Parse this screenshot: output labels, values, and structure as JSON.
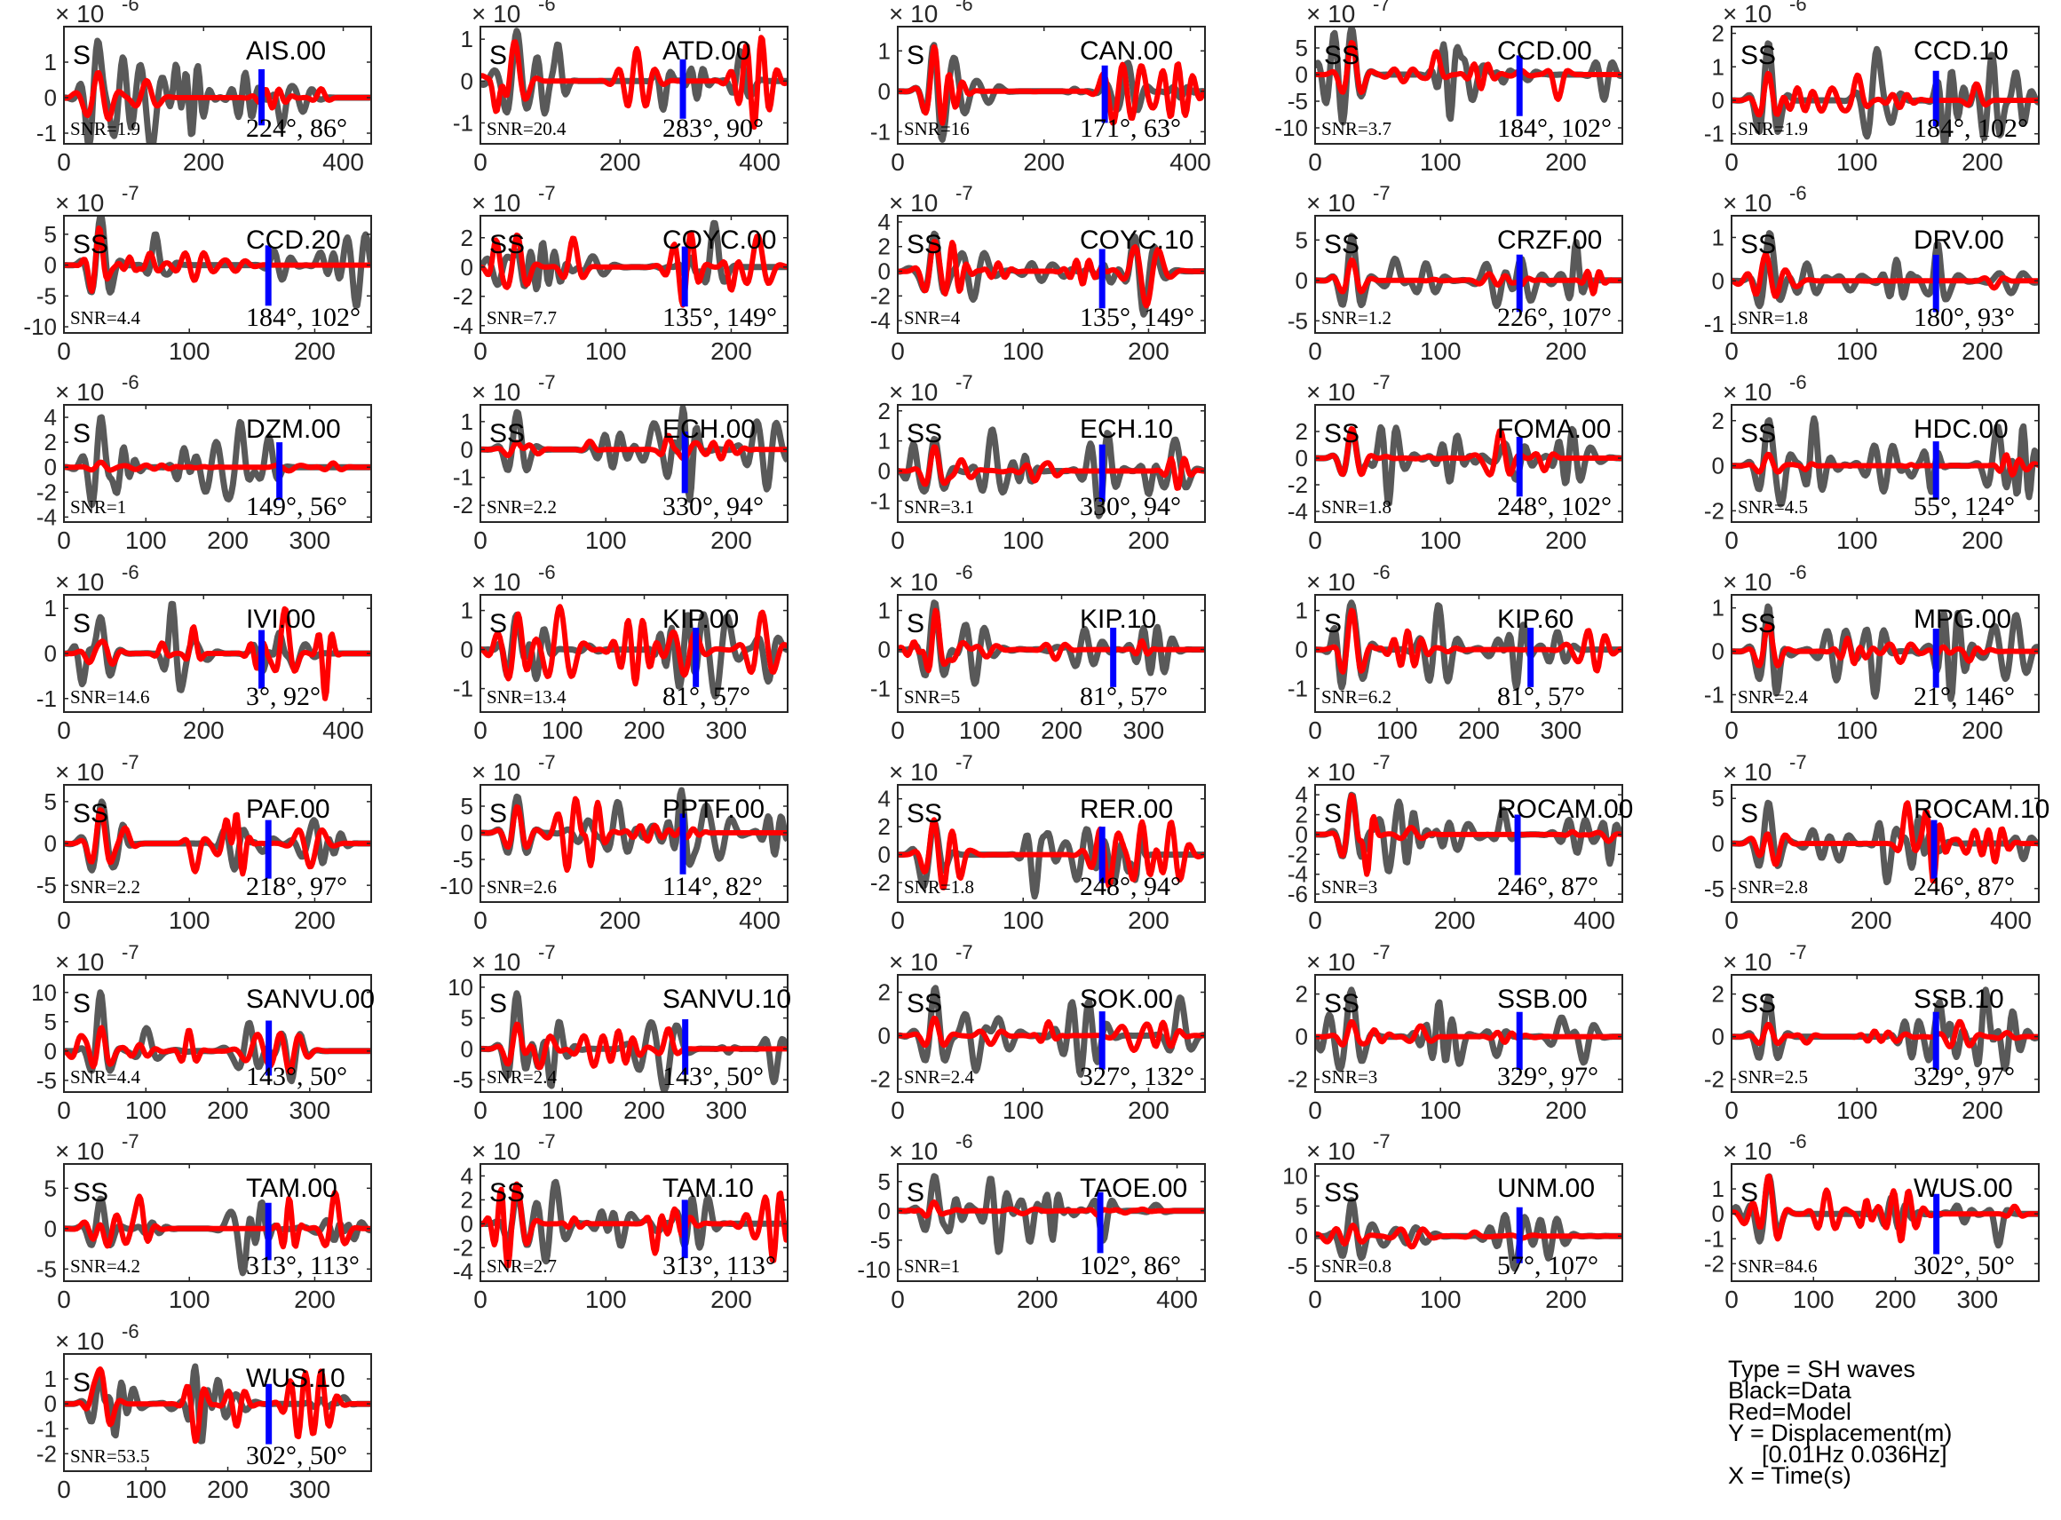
{
  "legend": {
    "type_line": "Type = SH waves",
    "black_line": "Black=Data",
    "red_line": "Red=Model",
    "y_line": "Y = Displacement(m)",
    "band_line": "[0.01Hz 0.036Hz]",
    "x_line": "X = Time(s)"
  },
  "colors": {
    "data": "#595959",
    "model": "#ff0000",
    "pick": "#0000ff",
    "axis": "#262626"
  },
  "chart_data": [
    {
      "type": "line",
      "station": "AIS.00",
      "phase": "S",
      "snr": "SNR=1.9",
      "azimuth": "224°, 86°",
      "exponent": "-6",
      "xlim": [
        0,
        440
      ],
      "xticks": [
        0,
        200,
        400
      ],
      "ylim": [
        -1.3,
        2.0
      ],
      "yticks": [
        -1,
        0,
        1
      ],
      "pick": 283,
      "seed": 1,
      "data_amp": 1.6,
      "model_amp": 0.7
    },
    {
      "type": "line",
      "station": "ATD.00",
      "phase": "S",
      "snr": "SNR=20.4",
      "azimuth": "283°, 90°",
      "exponent": "-6",
      "xlim": [
        0,
        440
      ],
      "xticks": [
        0,
        200,
        400
      ],
      "ylim": [
        -1.5,
        1.3
      ],
      "yticks": [
        -1,
        0,
        1
      ],
      "pick": 290,
      "seed": 2,
      "data_amp": 1.2,
      "model_amp": 1.1
    },
    {
      "type": "line",
      "station": "CAN.00",
      "phase": "S",
      "snr": "SNR=16",
      "azimuth": "171°, 63°",
      "exponent": "-6",
      "xlim": [
        0,
        420
      ],
      "xticks": [
        0,
        200,
        400
      ],
      "ylim": [
        -1.3,
        1.6
      ],
      "yticks": [
        -1,
        0,
        1
      ],
      "pick": 283,
      "seed": 3,
      "data_amp": 1.2,
      "model_amp": 1.1
    },
    {
      "type": "line",
      "station": "CCD.00",
      "phase": "SS",
      "snr": "SNR=3.7",
      "azimuth": "184°, 102°",
      "exponent": "-7",
      "xlim": [
        0,
        245
      ],
      "xticks": [
        0,
        100,
        200
      ],
      "ylim": [
        -13,
        9
      ],
      "yticks": [
        -10,
        -5,
        0,
        5
      ],
      "pick": 163,
      "seed": 4,
      "data_amp": 9,
      "model_amp": 6
    },
    {
      "type": "line",
      "station": "CCD.10",
      "phase": "SS",
      "snr": "SNR=1.9",
      "azimuth": "184°, 102°",
      "exponent": "-6",
      "xlim": [
        0,
        245
      ],
      "xticks": [
        0,
        100,
        200
      ],
      "ylim": [
        -1.3,
        2.2
      ],
      "yticks": [
        -1,
        0,
        1,
        2
      ],
      "pick": 163,
      "seed": 5,
      "data_amp": 1.7,
      "model_amp": 0.8
    },
    {
      "type": "line",
      "station": "CCD.20",
      "phase": "SS",
      "snr": "SNR=4.4",
      "azimuth": "184°, 102°",
      "exponent": "-7",
      "xlim": [
        0,
        245
      ],
      "xticks": [
        0,
        100,
        200
      ],
      "ylim": [
        -11,
        8
      ],
      "yticks": [
        -10,
        -5,
        0,
        5
      ],
      "pick": 163,
      "seed": 6,
      "data_amp": 8,
      "model_amp": 6
    },
    {
      "type": "line",
      "station": "COYC.00",
      "phase": "SS",
      "snr": "SNR=7.7",
      "azimuth": "135°, 149°",
      "exponent": "-7",
      "xlim": [
        0,
        245
      ],
      "xticks": [
        0,
        100,
        200
      ],
      "ylim": [
        -4.5,
        3.5
      ],
      "yticks": [
        -4,
        -2,
        0,
        2
      ],
      "pick": 163,
      "seed": 7,
      "data_amp": 3,
      "model_amp": 2.6
    },
    {
      "type": "line",
      "station": "COYC.10",
      "phase": "SS",
      "snr": "SNR=4",
      "azimuth": "135°, 149°",
      "exponent": "-7",
      "xlim": [
        0,
        245
      ],
      "xticks": [
        0,
        100,
        200
      ],
      "ylim": [
        -5,
        4.5
      ],
      "yticks": [
        -4,
        -2,
        0,
        2,
        4
      ],
      "pick": 163,
      "seed": 8,
      "data_amp": 3.5,
      "model_amp": 2.8
    },
    {
      "type": "line",
      "station": "CRZF.00",
      "phase": "SS",
      "snr": "SNR=1.2",
      "azimuth": "226°, 107°",
      "exponent": "-7",
      "xlim": [
        0,
        245
      ],
      "xticks": [
        0,
        100,
        200
      ],
      "ylim": [
        -6.5,
        8
      ],
      "yticks": [
        -5,
        0,
        5
      ],
      "pick": 163,
      "seed": 9,
      "data_amp": 5.5,
      "model_amp": 2.5
    },
    {
      "type": "line",
      "station": "DRV.00",
      "phase": "SS",
      "snr": "SNR=1.8",
      "azimuth": "180°, 93°",
      "exponent": "-6",
      "xlim": [
        0,
        245
      ],
      "xticks": [
        0,
        100,
        200
      ],
      "ylim": [
        -1.2,
        1.5
      ],
      "yticks": [
        -1,
        0,
        1
      ],
      "pick": 163,
      "seed": 10,
      "data_amp": 1.1,
      "model_amp": 0.6
    },
    {
      "type": "line",
      "station": "DZM.00",
      "phase": "S",
      "snr": "SNR=1",
      "azimuth": "149°, 56°",
      "exponent": "-6",
      "xlim": [
        0,
        375
      ],
      "xticks": [
        0,
        100,
        200,
        300
      ],
      "ylim": [
        -4.4,
        5
      ],
      "yticks": [
        -4,
        -2,
        0,
        2,
        4
      ],
      "pick": 263,
      "seed": 11,
      "data_amp": 4,
      "model_amp": 0.4
    },
    {
      "type": "line",
      "station": "ECH.00",
      "phase": "SS",
      "snr": "SNR=2.2",
      "azimuth": "330°, 94°",
      "exponent": "-7",
      "xlim": [
        0,
        245
      ],
      "xticks": [
        0,
        100,
        200
      ],
      "ylim": [
        -2.6,
        1.6
      ],
      "yticks": [
        -2,
        -1,
        0,
        1
      ],
      "pick": 163,
      "seed": 12,
      "data_amp": 1.8,
      "model_amp": 0.5
    },
    {
      "type": "line",
      "station": "ECH.10",
      "phase": "SS",
      "snr": "SNR=3.1",
      "azimuth": "330°, 94°",
      "exponent": "-7",
      "xlim": [
        0,
        245
      ],
      "xticks": [
        0,
        100,
        200
      ],
      "ylim": [
        -1.7,
        2.2
      ],
      "yticks": [
        -1,
        0,
        1,
        2
      ],
      "pick": 163,
      "seed": 13,
      "data_amp": 1.5,
      "model_amp": 0.8
    },
    {
      "type": "line",
      "station": "FOMA.00",
      "phase": "SS",
      "snr": "SNR=1.8",
      "azimuth": "248°, 102°",
      "exponent": "-7",
      "xlim": [
        0,
        245
      ],
      "xticks": [
        0,
        100,
        200
      ],
      "ylim": [
        -4.8,
        4
      ],
      "yticks": [
        -4,
        -2,
        0,
        2
      ],
      "pick": 163,
      "seed": 14,
      "data_amp": 3.4,
      "model_amp": 2.2
    },
    {
      "type": "line",
      "station": "HDC.00",
      "phase": "SS",
      "snr": "SNR=4.5",
      "azimuth": "55°, 124°",
      "exponent": "-6",
      "xlim": [
        0,
        245
      ],
      "xticks": [
        0,
        100,
        200
      ],
      "ylim": [
        -2.5,
        2.7
      ],
      "yticks": [
        -2,
        0,
        2
      ],
      "pick": 163,
      "seed": 15,
      "data_amp": 2.1,
      "model_amp": 0.5
    },
    {
      "type": "line",
      "station": "IVI.00",
      "phase": "S",
      "snr": "SNR=14.6",
      "azimuth": "3°, 92°",
      "exponent": "-6",
      "xlim": [
        0,
        440
      ],
      "xticks": [
        0,
        200,
        400
      ],
      "ylim": [
        -1.3,
        1.3
      ],
      "yticks": [
        -1,
        0,
        1
      ],
      "pick": 283,
      "seed": 16,
      "data_amp": 1.1,
      "model_amp": 1.0
    },
    {
      "type": "line",
      "station": "KIP.00",
      "phase": "S",
      "snr": "SNR=13.4",
      "azimuth": "81°, 57°",
      "exponent": "-6",
      "xlim": [
        0,
        375
      ],
      "xticks": [
        0,
        100,
        200,
        300
      ],
      "ylim": [
        -1.6,
        1.4
      ],
      "yticks": [
        -1,
        0,
        1
      ],
      "pick": 263,
      "seed": 17,
      "data_amp": 1.2,
      "model_amp": 1.1
    },
    {
      "type": "line",
      "station": "KIP.10",
      "phase": "S",
      "snr": "SNR=5",
      "azimuth": "81°, 57°",
      "exponent": "-6",
      "xlim": [
        0,
        375
      ],
      "xticks": [
        0,
        100,
        200,
        300
      ],
      "ylim": [
        -1.6,
        1.4
      ],
      "yticks": [
        -1,
        0,
        1
      ],
      "pick": 263,
      "seed": 18,
      "data_amp": 1.2,
      "model_amp": 1.0
    },
    {
      "type": "line",
      "station": "KIP.60",
      "phase": "S",
      "snr": "SNR=6.2",
      "azimuth": "81°, 57°",
      "exponent": "-6",
      "xlim": [
        0,
        375
      ],
      "xticks": [
        0,
        100,
        200,
        300
      ],
      "ylim": [
        -1.6,
        1.4
      ],
      "yticks": [
        -1,
        0,
        1
      ],
      "pick": 263,
      "seed": 19,
      "data_amp": 1.2,
      "model_amp": 1.0
    },
    {
      "type": "line",
      "station": "MPG.00",
      "phase": "SS",
      "snr": "SNR=2.4",
      "azimuth": "21°, 146°",
      "exponent": "-6",
      "xlim": [
        0,
        245
      ],
      "xticks": [
        0,
        100,
        200
      ],
      "ylim": [
        -1.4,
        1.3
      ],
      "yticks": [
        -1,
        0,
        1
      ],
      "pick": 163,
      "seed": 20,
      "data_amp": 1.1,
      "model_amp": 0.6
    },
    {
      "type": "line",
      "station": "PAF.00",
      "phase": "SS",
      "snr": "SNR=2.2",
      "azimuth": "218°, 97°",
      "exponent": "-7",
      "xlim": [
        0,
        245
      ],
      "xticks": [
        0,
        100,
        200
      ],
      "ylim": [
        -7,
        7
      ],
      "yticks": [
        -5,
        0,
        5
      ],
      "pick": 163,
      "seed": 21,
      "data_amp": 5,
      "model_amp": 4
    },
    {
      "type": "line",
      "station": "PPTF.00",
      "phase": "S",
      "snr": "SNR=2.6",
      "azimuth": "114°, 82°",
      "exponent": "-7",
      "xlim": [
        0,
        440
      ],
      "xticks": [
        0,
        200,
        400
      ],
      "ylim": [
        -13,
        9
      ],
      "yticks": [
        -10,
        -5,
        0,
        5
      ],
      "pick": 290,
      "seed": 22,
      "data_amp": 8,
      "model_amp": 7
    },
    {
      "type": "line",
      "station": "RER.00",
      "phase": "SS",
      "snr": "SNR=1.8",
      "azimuth": "248°, 94°",
      "exponent": "-7",
      "xlim": [
        0,
        245
      ],
      "xticks": [
        0,
        100,
        200
      ],
      "ylim": [
        -3.4,
        5
      ],
      "yticks": [
        -2,
        0,
        2,
        4
      ],
      "pick": 163,
      "seed": 23,
      "data_amp": 3,
      "model_amp": 2.5
    },
    {
      "type": "line",
      "station": "ROCAM.00",
      "phase": "S",
      "snr": "SNR=3",
      "azimuth": "246°, 87°",
      "exponent": "-7",
      "xlim": [
        0,
        440
      ],
      "xticks": [
        0,
        200,
        400
      ],
      "ylim": [
        -6.8,
        5
      ],
      "yticks": [
        -6,
        -4,
        -2,
        0,
        2,
        4
      ],
      "pick": 290,
      "seed": 24,
      "data_amp": 4,
      "model_amp": 4
    },
    {
      "type": "line",
      "station": "ROCAM.10",
      "phase": "S",
      "snr": "SNR=2.8",
      "azimuth": "246°, 87°",
      "exponent": "-7",
      "xlim": [
        0,
        440
      ],
      "xticks": [
        0,
        200,
        400
      ],
      "ylim": [
        -6.5,
        6.5
      ],
      "yticks": [
        -5,
        0,
        5
      ],
      "pick": 290,
      "seed": 25,
      "data_amp": 4.5,
      "model_amp": 4.5
    },
    {
      "type": "line",
      "station": "SANVU.00",
      "phase": "S",
      "snr": "SNR=4.4",
      "azimuth": "143°, 50°",
      "exponent": "-7",
      "xlim": [
        0,
        375
      ],
      "xticks": [
        0,
        100,
        200,
        300
      ],
      "ylim": [
        -7,
        13
      ],
      "yticks": [
        -5,
        0,
        5,
        10
      ],
      "pick": 250,
      "seed": 26,
      "data_amp": 10,
      "model_amp": 4
    },
    {
      "type": "line",
      "station": "SANVU.10",
      "phase": "S",
      "snr": "SNR=2.4",
      "azimuth": "143°, 50°",
      "exponent": "-7",
      "xlim": [
        0,
        375
      ],
      "xticks": [
        0,
        100,
        200,
        300
      ],
      "ylim": [
        -7,
        12
      ],
      "yticks": [
        -5,
        0,
        5,
        10
      ],
      "pick": 250,
      "seed": 27,
      "data_amp": 9,
      "model_amp": 4
    },
    {
      "type": "line",
      "station": "SOK.00",
      "phase": "SS",
      "snr": "SNR=2.4",
      "azimuth": "327°, 132°",
      "exponent": "-7",
      "xlim": [
        0,
        245
      ],
      "xticks": [
        0,
        100,
        200
      ],
      "ylim": [
        -2.6,
        2.8
      ],
      "yticks": [
        -2,
        0,
        2
      ],
      "pick": 163,
      "seed": 28,
      "data_amp": 2.2,
      "model_amp": 0.8
    },
    {
      "type": "line",
      "station": "SSB.00",
      "phase": "SS",
      "snr": "SNR=3",
      "azimuth": "329°, 97°",
      "exponent": "-7",
      "xlim": [
        0,
        245
      ],
      "xticks": [
        0,
        100,
        200
      ],
      "ylim": [
        -2.6,
        2.9
      ],
      "yticks": [
        -2,
        0,
        2
      ],
      "pick": 163,
      "seed": 29,
      "data_amp": 2.2,
      "model_amp": 0.7
    },
    {
      "type": "line",
      "station": "SSB.10",
      "phase": "SS",
      "snr": "SNR=2.5",
      "azimuth": "329°, 97°",
      "exponent": "-7",
      "xlim": [
        0,
        245
      ],
      "xticks": [
        0,
        100,
        200
      ],
      "ylim": [
        -2.6,
        2.9
      ],
      "yticks": [
        -2,
        0,
        2
      ],
      "pick": 163,
      "seed": 30,
      "data_amp": 2.2,
      "model_amp": 0.7
    },
    {
      "type": "line",
      "station": "TAM.00",
      "phase": "SS",
      "snr": "SNR=4.2",
      "azimuth": "313°, 113°",
      "exponent": "-7",
      "xlim": [
        0,
        245
      ],
      "xticks": [
        0,
        100,
        200
      ],
      "ylim": [
        -6.5,
        8
      ],
      "yticks": [
        -5,
        0,
        5
      ],
      "pick": 163,
      "seed": 31,
      "data_amp": 5.5,
      "model_amp": 4.5
    },
    {
      "type": "line",
      "station": "TAM.10",
      "phase": "SS",
      "snr": "SNR=2.7",
      "azimuth": "313°, 113°",
      "exponent": "-7",
      "xlim": [
        0,
        245
      ],
      "xticks": [
        0,
        100,
        200
      ],
      "ylim": [
        -4.8,
        5
      ],
      "yticks": [
        -4,
        -2,
        0,
        2,
        4
      ],
      "pick": 163,
      "seed": 32,
      "data_amp": 3.5,
      "model_amp": 3.5
    },
    {
      "type": "line",
      "station": "TAOE.00",
      "phase": "S",
      "snr": "SNR=1",
      "azimuth": "102°, 86°",
      "exponent": "-6",
      "xlim": [
        0,
        440
      ],
      "xticks": [
        0,
        200,
        400
      ],
      "ylim": [
        -12,
        8
      ],
      "yticks": [
        -10,
        -5,
        0,
        5
      ],
      "pick": 290,
      "seed": 33,
      "data_amp": 7,
      "model_amp": 1.5
    },
    {
      "type": "line",
      "station": "UNM.00",
      "phase": "SS",
      "snr": "SNR=0.8",
      "azimuth": "57°, 107°",
      "exponent": "-7",
      "xlim": [
        0,
        245
      ],
      "xticks": [
        0,
        100,
        200
      ],
      "ylim": [
        -7.5,
        12
      ],
      "yticks": [
        -5,
        0,
        5,
        10
      ],
      "pick": 163,
      "seed": 34,
      "data_amp": 6,
      "model_amp": 1.8
    },
    {
      "type": "line",
      "station": "WUS.00",
      "phase": "S",
      "snr": "SNR=84.6",
      "azimuth": "302°, 50°",
      "exponent": "-6",
      "xlim": [
        0,
        375
      ],
      "xticks": [
        0,
        100,
        200,
        300
      ],
      "ylim": [
        -2.7,
        2
      ],
      "yticks": [
        -2,
        -1,
        0,
        1
      ],
      "pick": 250,
      "seed": 35,
      "data_amp": 1.5,
      "model_amp": 1.5
    },
    {
      "type": "line",
      "station": "WUS.10",
      "phase": "S",
      "snr": "SNR=53.5",
      "azimuth": "302°, 50°",
      "exponent": "-6",
      "xlim": [
        0,
        375
      ],
      "xticks": [
        0,
        100,
        200,
        300
      ],
      "ylim": [
        -2.7,
        2
      ],
      "yticks": [
        -2,
        -1,
        0,
        1
      ],
      "pick": 250,
      "seed": 36,
      "data_amp": 1.5,
      "model_amp": 1.5
    }
  ]
}
